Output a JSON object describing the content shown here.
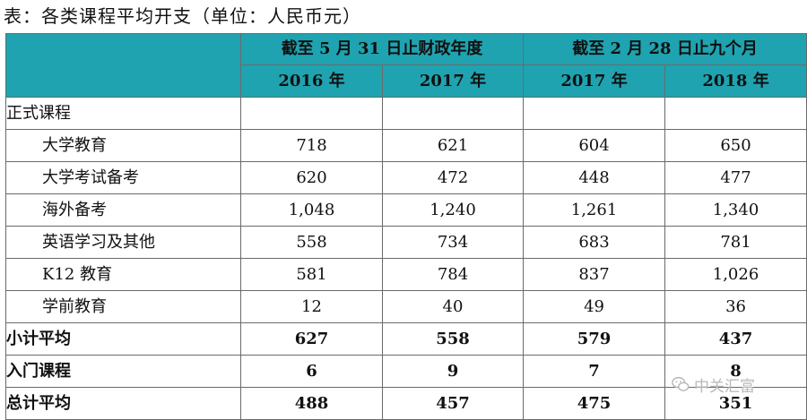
{
  "title": "表：各类课程平均开支（单位：人民币元）",
  "header": {
    "groups": [
      "截至 5 月 31 日止财政年度",
      "截至 2 月 28 日止九个月"
    ],
    "years": [
      "2016 年",
      "2017 年",
      "2017 年",
      "2018 年"
    ]
  },
  "rows": [
    {
      "label": "正式课程",
      "values": [
        "",
        "",
        "",
        ""
      ]
    },
    {
      "label": "大学教育",
      "values": [
        "718",
        "621",
        "604",
        "650"
      ]
    },
    {
      "label": "大学考试备考",
      "values": [
        "620",
        "472",
        "448",
        "477"
      ]
    },
    {
      "label": "海外备考",
      "values": [
        "1,048",
        "1,240",
        "1,261",
        "1,340"
      ]
    },
    {
      "label": "英语学习及其他",
      "values": [
        "558",
        "734",
        "683",
        "781"
      ]
    },
    {
      "label": "K12 教育",
      "values": [
        "581",
        "784",
        "837",
        "1,026"
      ]
    },
    {
      "label": "学前教育",
      "values": [
        "12",
        "40",
        "49",
        "36"
      ]
    },
    {
      "label": "小计平均",
      "values": [
        "627",
        "558",
        "579",
        "437"
      ]
    },
    {
      "label": "入门课程",
      "values": [
        "6",
        "9",
        "7",
        "8"
      ]
    },
    {
      "label": "总计平均",
      "values": [
        "488",
        "457",
        "475",
        "351"
      ]
    }
  ],
  "watermark": {
    "text": "中关汇富",
    "icon": "wechat-icon"
  },
  "colors": {
    "header_bg": "#1fa3b0",
    "border": "#6a6a6a"
  }
}
